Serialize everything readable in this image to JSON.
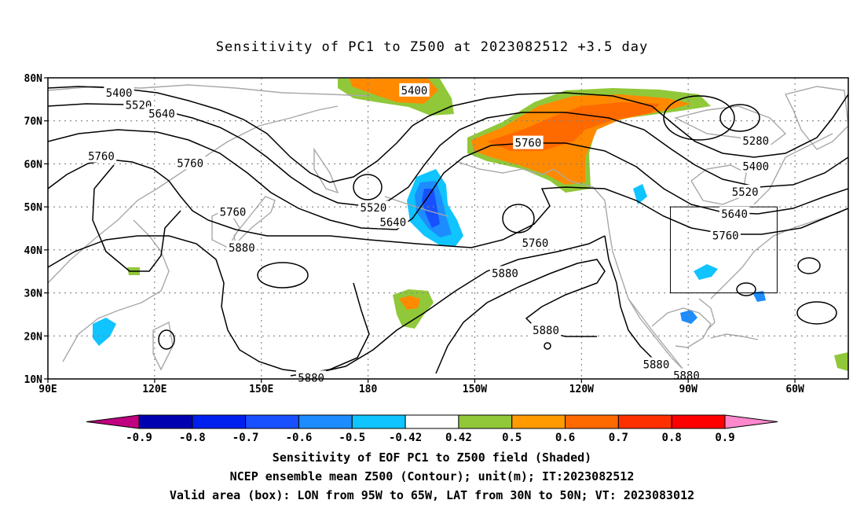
{
  "title": "Sensitivity of PC1 to Z500 at 2023082512 +3.5 day",
  "map": {
    "lat_labels": [
      "80N",
      "70N",
      "60N",
      "50N",
      "40N",
      "30N",
      "20N",
      "10N"
    ],
    "lon_labels": [
      "90E",
      "120E",
      "150E",
      "180",
      "150W",
      "120W",
      "90W",
      "60W"
    ],
    "contour_labels": [
      {
        "text": "5400",
        "lon": 110,
        "lat": 76.5
      },
      {
        "text": "5520",
        "lon": 115.5,
        "lat": 73.7
      },
      {
        "text": "5640",
        "lon": 122,
        "lat": 71.7
      },
      {
        "text": "5760",
        "lon": 105,
        "lat": 61.8
      },
      {
        "text": "5760",
        "lon": 130,
        "lat": 60.2
      },
      {
        "text": "5760",
        "lon": 142,
        "lat": 48.8
      },
      {
        "text": "5880",
        "lon": 144.5,
        "lat": 40.5
      },
      {
        "text": "5400",
        "lon": 193,
        "lat": 77.1
      },
      {
        "text": "5520",
        "lon": 181.5,
        "lat": 49.8
      },
      {
        "text": "5640",
        "lon": 187,
        "lat": 46.5
      },
      {
        "text": "5760",
        "lon": 225,
        "lat": 64.9
      },
      {
        "text": "5760",
        "lon": 227,
        "lat": 41.6
      },
      {
        "text": "5880",
        "lon": 218.5,
        "lat": 34.6
      },
      {
        "text": "5880",
        "lon": 230,
        "lat": 21.3
      },
      {
        "text": "5880",
        "lon": 261,
        "lat": 13.4
      },
      {
        "text": "5880",
        "lon": 269.5,
        "lat": 10.8
      },
      {
        "text": "5880",
        "lon": 164,
        "lat": 10.3
      },
      {
        "text": "5280",
        "lon": 289,
        "lat": 65.4
      },
      {
        "text": "5400",
        "lon": 289,
        "lat": 59.4
      },
      {
        "text": "5520",
        "lon": 286,
        "lat": 53.5
      },
      {
        "text": "5640",
        "lon": 283,
        "lat": 48.4
      },
      {
        "text": "5760",
        "lon": 280.5,
        "lat": 43.4
      }
    ],
    "valid_box": {
      "lon_min": 265,
      "lon_max": 295,
      "lat_min": 30,
      "lat_max": 50
    }
  },
  "colorbar": {
    "labels": [
      "-0.9",
      "-0.8",
      "-0.7",
      "-0.6",
      "-0.5",
      "-0.42",
      "0.42",
      "0.5",
      "0.6",
      "0.7",
      "0.8",
      "0.9"
    ],
    "colors": [
      "#c00080",
      "#0000b0",
      "#0020f0",
      "#1850ff",
      "#1c8cff",
      "#10c4ff",
      "#ffffff",
      "#90c83a",
      "#ff9a00",
      "#ff6a00",
      "#ff3000",
      "#ff0000",
      "#ff88cc"
    ]
  },
  "captions": {
    "line1": "Sensitivity of EOF PC1 to Z500 field (Shaded)",
    "line2": "NCEP ensemble mean Z500 (Contour); unit(m); IT:2023082512",
    "line3": "Valid area (box): LON from 95W to 65W, LAT from 30N to 50N; VT: 2023083012"
  },
  "colors": {
    "contour": "#000000",
    "coast": "#a8a8a8",
    "grid": "#808080",
    "frame": "#000000"
  }
}
